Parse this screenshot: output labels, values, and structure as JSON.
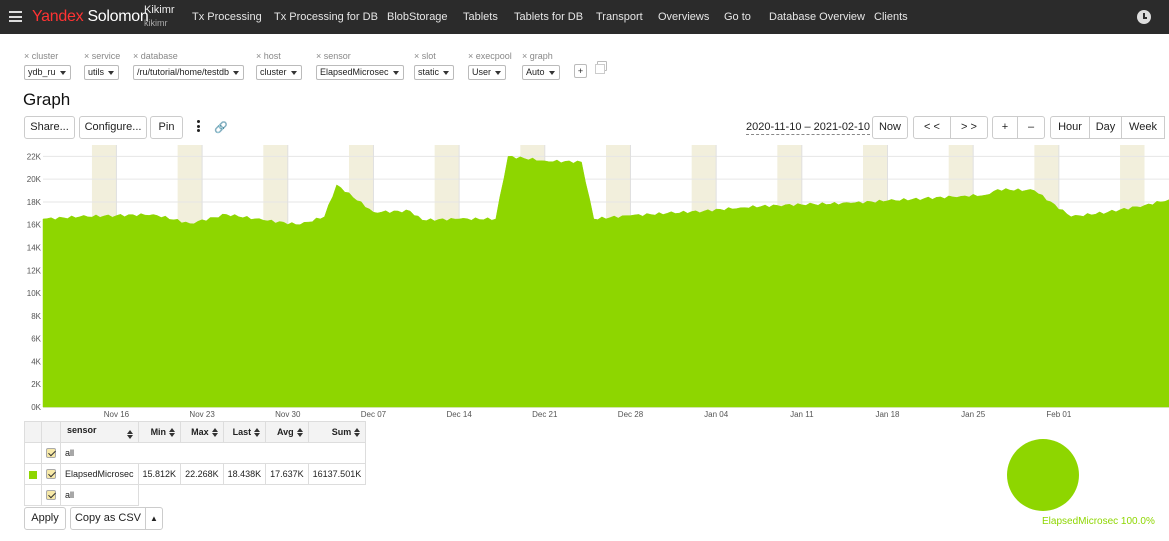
{
  "header": {
    "logo_brand": "Yandex",
    "logo_product": "Solomon",
    "project_name": "Kikimr",
    "project_id": "kikimr",
    "nav": [
      "Tx Processing",
      "Tx Processing for DB",
      "BlobStorage",
      "Tablets",
      "Tablets for DB",
      "Transport",
      "Overviews",
      "Go to",
      "Database Overview",
      "Clients"
    ]
  },
  "selectors": [
    {
      "label": "× cluster",
      "value": "ydb_ru"
    },
    {
      "label": "× service",
      "value": "utils"
    },
    {
      "label": "× database",
      "value": "/ru/tutorial/home/testdb"
    },
    {
      "label": "× host",
      "value": "cluster"
    },
    {
      "label": "× sensor",
      "value": "ElapsedMicrosec"
    },
    {
      "label": "× slot",
      "value": "static"
    },
    {
      "label": "× execpool",
      "value": "User"
    },
    {
      "label": "× graph",
      "value": "Auto"
    }
  ],
  "add_selector_label": "+",
  "page_title": "Graph",
  "toolbar": {
    "share": "Share...",
    "configure": "Configure...",
    "pin": "Pin",
    "date_range": "2020-11-10 – 2021-02-10",
    "now": "Now",
    "back": "< <",
    "forward": "> >",
    "zoom_in": "+",
    "zoom_out": "–",
    "hour": "Hour",
    "day": "Day",
    "week": "Week"
  },
  "chart_data": {
    "type": "area",
    "title": "",
    "xlabel": "",
    "ylabel": "",
    "ylim": [
      0,
      23000
    ],
    "y_ticks": [
      "0K",
      "2K",
      "4K",
      "6K",
      "8K",
      "10K",
      "12K",
      "14K",
      "16K",
      "18K",
      "20K",
      "22K"
    ],
    "x_ticks": [
      "Nov 16",
      "Nov 23",
      "Nov 30",
      "Dec 07",
      "Dec 14",
      "Dec 21",
      "Dec 28",
      "Jan 04",
      "Jan 11",
      "Jan 18",
      "Jan 25",
      "Feb 01"
    ],
    "weekend_shading": true,
    "grid": true,
    "color": "#8ed600",
    "series": [
      {
        "name": "ElapsedMicrosec",
        "x": [
          "2020-11-10",
          "2020-11-13",
          "2020-11-16",
          "2020-11-19",
          "2020-11-22",
          "2020-11-25",
          "2020-11-28",
          "2020-12-01",
          "2020-12-03",
          "2020-12-04",
          "2020-12-07",
          "2020-12-10",
          "2020-12-11",
          "2020-12-14",
          "2020-12-17",
          "2020-12-18",
          "2020-12-21",
          "2020-12-24",
          "2020-12-25",
          "2020-12-28",
          "2020-12-31",
          "2021-01-03",
          "2021-01-06",
          "2021-01-09",
          "2021-01-12",
          "2021-01-15",
          "2021-01-18",
          "2021-01-21",
          "2021-01-24",
          "2021-01-26",
          "2021-01-27",
          "2021-01-30",
          "2021-02-02",
          "2021-02-05",
          "2021-02-08",
          "2021-02-10"
        ],
        "y": [
          16500,
          16700,
          16800,
          16900,
          16100,
          16900,
          16400,
          16000,
          16700,
          19500,
          17100,
          17200,
          16400,
          16500,
          16500,
          22000,
          21600,
          21500,
          16500,
          16800,
          17000,
          17200,
          17500,
          17700,
          17800,
          17900,
          18100,
          18300,
          18500,
          18600,
          19100,
          19000,
          16700,
          17100,
          17700,
          18200
        ]
      }
    ]
  },
  "legend": {
    "headers": [
      "sensor",
      "Min",
      "Max",
      "Last",
      "Avg",
      "Sum"
    ],
    "all_label": "all",
    "rows": [
      {
        "sensor": "ElapsedMicrosec",
        "min": "15.812K",
        "max": "22.268K",
        "last": "18.438K",
        "avg": "17.637K",
        "sum": "16137.501K"
      }
    ]
  },
  "bottom": {
    "apply": "Apply",
    "copy_csv": "Copy as CSV"
  },
  "pie": {
    "label": "ElapsedMicrosec 100.0%",
    "color": "#8ed600"
  }
}
